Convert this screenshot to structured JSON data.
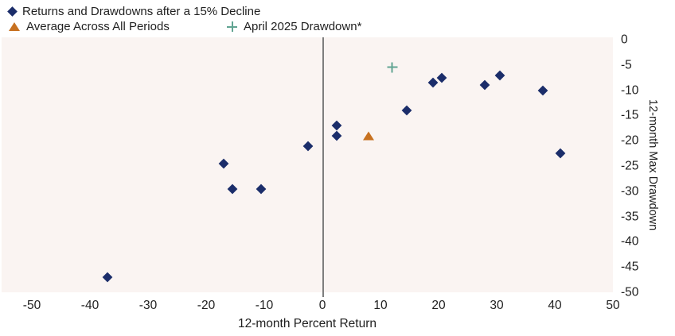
{
  "colors": {
    "diamond": "#1b2d6a",
    "triangle": "#c77120",
    "plus": "#61a492",
    "plot_background": "#faf4f2",
    "zero_line": "#7e7e7e",
    "text": "#1f1f1f"
  },
  "legend": [
    {
      "label": "Returns and Drawdowns after a 15% Decline",
      "marker": "diamond",
      "color": "#1b2d6a"
    },
    {
      "label": "Average Across All Periods",
      "marker": "triangle",
      "color": "#c77120"
    },
    {
      "label": "April 2025 Drawdown*",
      "marker": "plus",
      "color": "#61a492"
    }
  ],
  "chart_data": {
    "type": "scatter",
    "title": "",
    "xlabel": "12-month Percent Return",
    "ylabel": "12-month Max Drawdown",
    "xlim": [
      -50,
      50
    ],
    "ylim": [
      -50,
      0
    ],
    "x_ticks": [
      -50,
      -40,
      -30,
      -20,
      -10,
      0,
      10,
      20,
      30,
      40,
      50
    ],
    "y_ticks": [
      0,
      -5,
      -10,
      -15,
      -20,
      -25,
      -30,
      -35,
      -40,
      -45,
      -50
    ],
    "grid": false,
    "legend_position": "top-left",
    "zero_line_x": 0,
    "series": [
      {
        "name": "Returns and Drawdowns after a 15% Decline",
        "marker": "diamond",
        "color": "#1b2d6a",
        "points": [
          [
            -37,
            -47
          ],
          [
            -17,
            -24.5
          ],
          [
            -15.5,
            -29.5
          ],
          [
            -10.5,
            -29.5
          ],
          [
            -2.5,
            -21
          ],
          [
            2.5,
            -17
          ],
          [
            2.5,
            -19
          ],
          [
            14.5,
            -14
          ],
          [
            19,
            -8.5
          ],
          [
            20.5,
            -7.5
          ],
          [
            28,
            -9
          ],
          [
            30.5,
            -7
          ],
          [
            38,
            -10
          ],
          [
            41,
            -22.5
          ]
        ]
      },
      {
        "name": "Average Across All Periods",
        "marker": "triangle",
        "color": "#c77120",
        "points": [
          [
            8,
            -19
          ]
        ]
      },
      {
        "name": "April 2025 Drawdown*",
        "marker": "plus",
        "color": "#61a492",
        "points": [
          [
            12,
            -5.5
          ]
        ]
      }
    ]
  }
}
